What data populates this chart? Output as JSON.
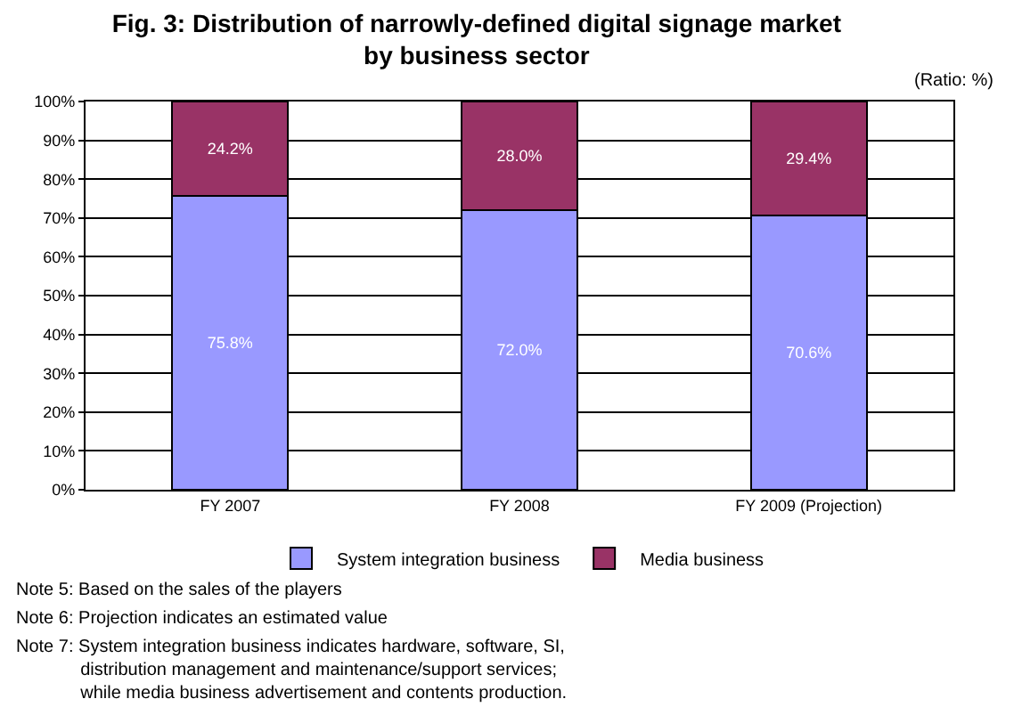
{
  "chart_data": {
    "type": "bar",
    "stacked": true,
    "title": "Fig. 3: Distribution of narrowly-defined digital signage market\nby business sector",
    "categories": [
      "FY 2007",
      "FY 2008",
      "FY 2009 (Projection)"
    ],
    "series": [
      {
        "name": "System integration business",
        "color": "#9999ff",
        "values": [
          75.8,
          72.0,
          70.6
        ],
        "value_labels": [
          "75.8%",
          "72.0%",
          "70.6%"
        ]
      },
      {
        "name": "Media business",
        "color": "#993366",
        "values": [
          24.2,
          28.0,
          29.4
        ],
        "value_labels": [
          "24.2%",
          "28.0%",
          "29.4%"
        ]
      }
    ],
    "ylim": [
      0,
      100
    ],
    "yticks": [
      {
        "value": 0,
        "label": "0%"
      },
      {
        "value": 10,
        "label": "10%"
      },
      {
        "value": 20,
        "label": "20%"
      },
      {
        "value": 30,
        "label": "30%"
      },
      {
        "value": 40,
        "label": "40%"
      },
      {
        "value": 50,
        "label": "50%"
      },
      {
        "value": 60,
        "label": "60%"
      },
      {
        "value": 70,
        "label": "70%"
      },
      {
        "value": 80,
        "label": "80%"
      },
      {
        "value": 90,
        "label": "90%"
      },
      {
        "value": 100,
        "label": "100%"
      }
    ],
    "grid": "y",
    "legend": "bottom",
    "annotations": [
      "(Ratio: %)",
      "Note 5: Based on the sales of the players",
      "Note 6: Projection indicates an estimated value",
      "Note 7: System integration business indicates hardware, software, SI,\n             distribution management and maintenance/support services;\n             while media business advertisement and contents production."
    ]
  }
}
